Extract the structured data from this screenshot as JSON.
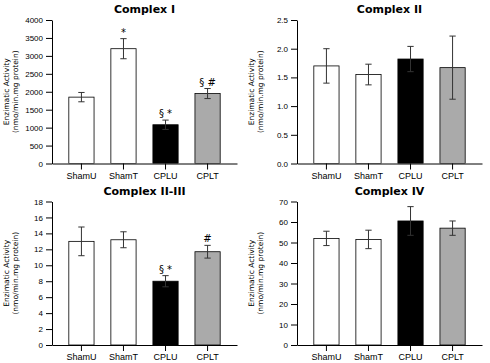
{
  "chart_data": [
    {
      "type": "bar",
      "title": "Complex I",
      "categories": [
        "ShamU",
        "ShamT",
        "CPLU",
        "CPLT"
      ],
      "values": [
        1850,
        3200,
        1080,
        1950
      ],
      "errors": [
        130,
        280,
        130,
        140
      ],
      "ylim": [
        0,
        4000
      ],
      "yticks": [
        0,
        500,
        1000,
        1500,
        2000,
        2500,
        3000,
        3500,
        4000
      ],
      "ylabel": "Enzimatic Activity\n(nmo/min.mg protein)",
      "annotations": [
        null,
        "*",
        "§ *",
        "§ #"
      ],
      "colors": [
        "white",
        "white",
        "black",
        "#aaaaaa"
      ],
      "grid": false
    },
    {
      "type": "bar",
      "title": "Complex II",
      "categories": [
        "ShamU",
        "ShamT",
        "CPLU",
        "CPLT"
      ],
      "values": [
        1.7,
        1.55,
        1.82,
        1.67
      ],
      "errors": [
        0.3,
        0.18,
        0.22,
        0.55
      ],
      "ylim": [
        0,
        2.5
      ],
      "yticks": [
        {
          "value": 0,
          "label": "0.0"
        },
        0.5,
        {
          "value": 1.0,
          "label": "1.0"
        },
        1.5,
        {
          "value": 2.0,
          "label": "2.0"
        },
        2.5
      ],
      "ylabel": "Enzimatic Activity\n(nmo/min.mg protein)",
      "colors": [
        "white",
        "white",
        "black",
        "#aaaaaa"
      ],
      "grid": false
    },
    {
      "type": "bar",
      "title": "Complex II-III",
      "categories": [
        "ShamU",
        "ShamT",
        "CPLU",
        "CPLT"
      ],
      "values": [
        13.0,
        13.2,
        8.0,
        11.7
      ],
      "errors": [
        1.8,
        1.0,
        0.7,
        0.8
      ],
      "ylim": [
        0,
        18
      ],
      "yticks": [
        0,
        2,
        4,
        6,
        8,
        10,
        12,
        14,
        16,
        18
      ],
      "ylabel": "Enzimatic Activity\n(nmo/min.mg protein)",
      "annotations": [
        null,
        null,
        "§ *",
        "#"
      ],
      "colors": [
        "white",
        "white",
        "black",
        "#aaaaaa"
      ],
      "grid": false
    },
    {
      "type": "bar",
      "title": "Complex IV",
      "categories": [
        "ShamU",
        "ShamT",
        "CPLU",
        "CPLT"
      ],
      "values": [
        52.0,
        51.5,
        60.5,
        57.0
      ],
      "errors": [
        3.5,
        4.5,
        7.0,
        3.5
      ],
      "ylim": [
        0,
        70
      ],
      "yticks": [
        0,
        10,
        20,
        30,
        40,
        50,
        60,
        70
      ],
      "ylabel": "Enzimatic Activity\n(nmo/min.mg protein)",
      "colors": [
        "white",
        "white",
        "black",
        "#aaaaaa"
      ],
      "grid": false
    }
  ]
}
